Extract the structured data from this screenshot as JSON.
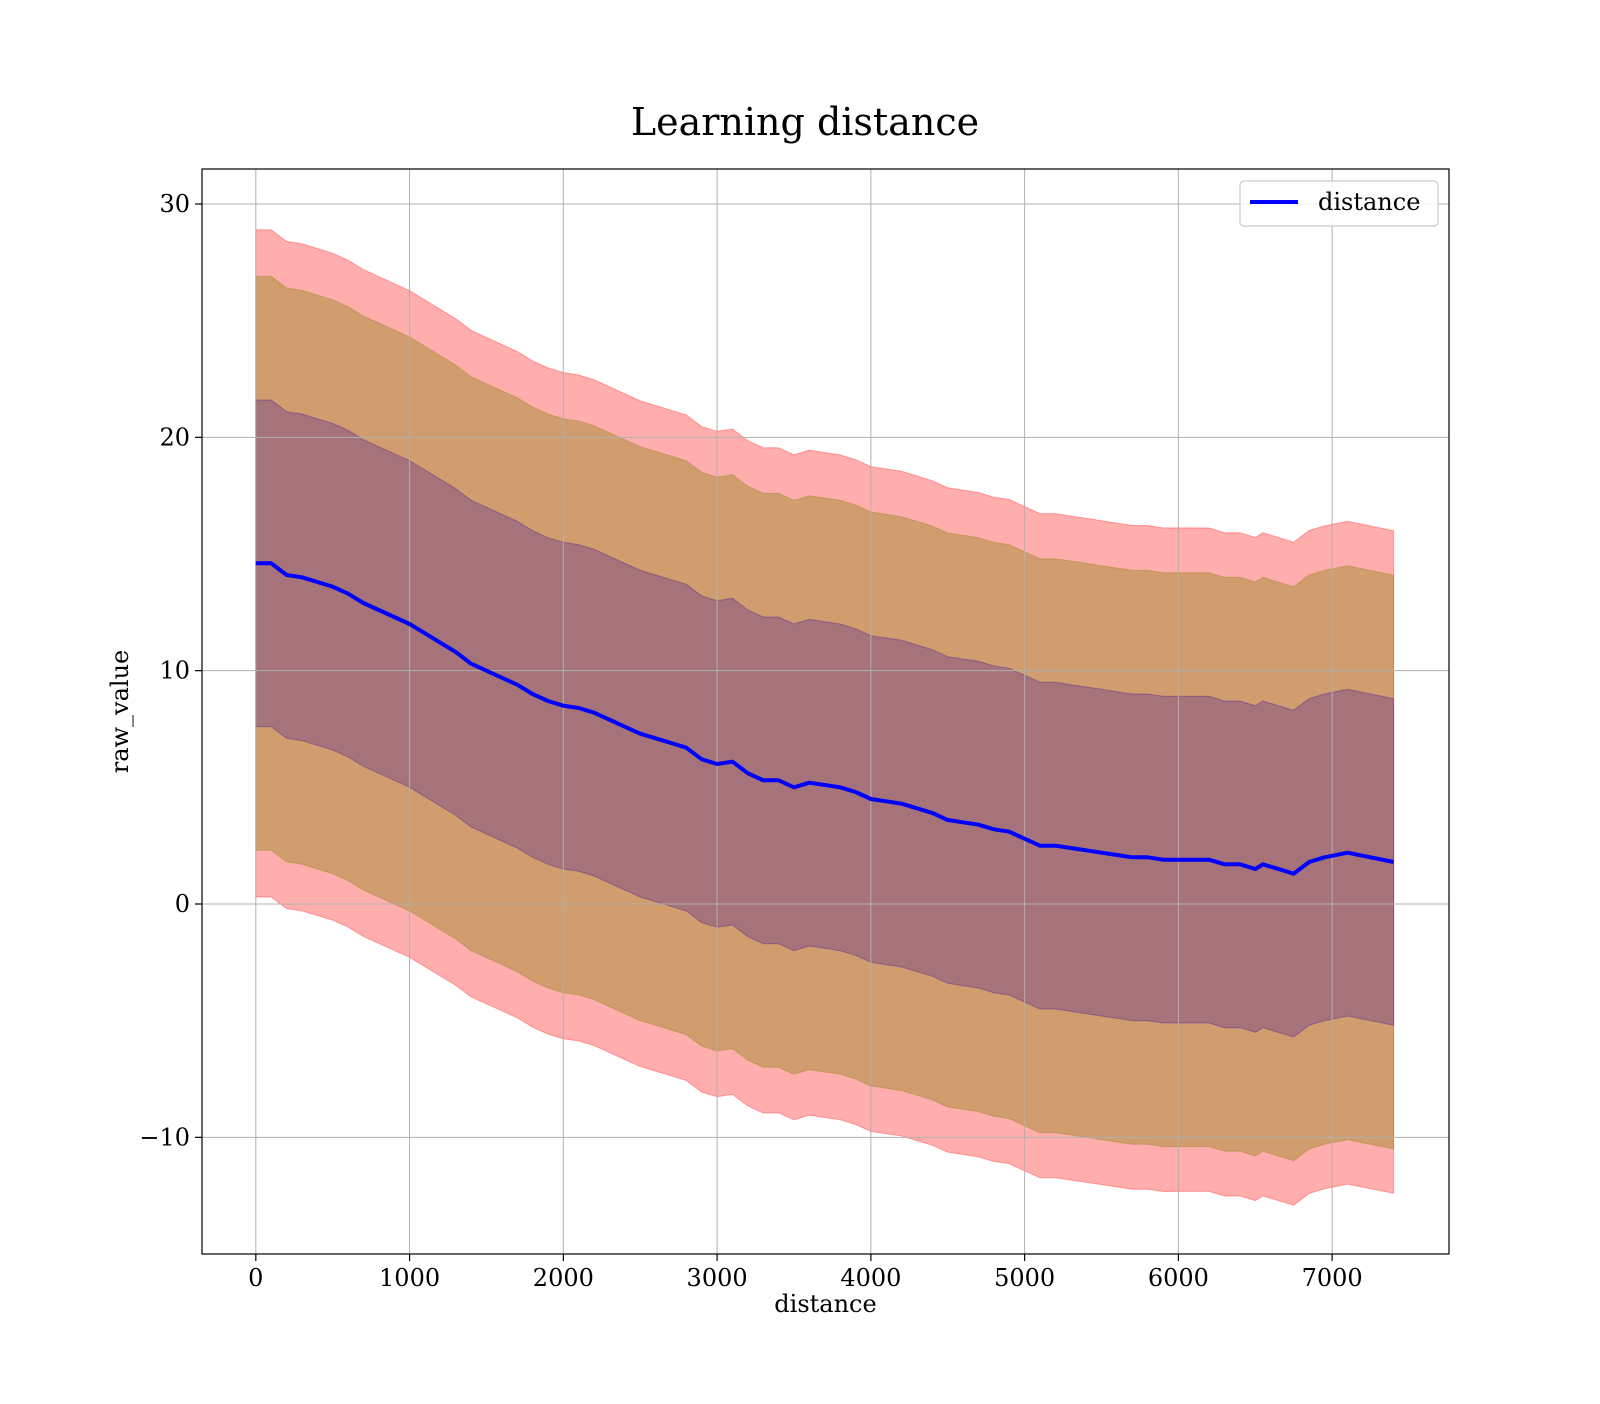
{
  "chart_data": {
    "type": "area",
    "title": "Learning distance",
    "xlabel": "distance",
    "ylabel": "raw_value",
    "xlim": [
      -350,
      7760
    ],
    "ylim": [
      -15,
      31.5
    ],
    "xticks": [
      0,
      1000,
      2000,
      3000,
      4000,
      5000,
      6000,
      7000
    ],
    "yticks": [
      -10,
      0,
      10,
      20,
      30
    ],
    "ytick_labels": [
      "−10",
      "0",
      "10",
      "20",
      "30"
    ],
    "grid": true,
    "legend": {
      "position": "top-right",
      "entries": [
        {
          "label": "distance",
          "color": "#0000ff"
        }
      ]
    },
    "series": [
      {
        "name": "distance",
        "color": "#0000ff",
        "x": [
          0,
          100,
          200,
          300,
          400,
          500,
          600,
          700,
          800,
          900,
          1000,
          1100,
          1200,
          1300,
          1400,
          1500,
          1600,
          1700,
          1800,
          1900,
          2000,
          2100,
          2200,
          2300,
          2400,
          2500,
          2600,
          2700,
          2800,
          2900,
          3000,
          3100,
          3200,
          3300,
          3400,
          3500,
          3600,
          3700,
          3800,
          3900,
          4000,
          4100,
          4200,
          4300,
          4400,
          4500,
          4600,
          4700,
          4800,
          4900,
          5000,
          5100,
          5200,
          5300,
          5400,
          5500,
          5600,
          5700,
          5800,
          5900,
          6000,
          6100,
          6200,
          6300,
          6400,
          6500,
          6550,
          6750,
          6850,
          6950,
          7100,
          7400
        ],
        "values": [
          14.6,
          14.6,
          14.1,
          14.0,
          13.8,
          13.6,
          13.3,
          12.9,
          12.6,
          12.3,
          12.0,
          11.6,
          11.2,
          10.8,
          10.3,
          10.0,
          9.7,
          9.4,
          9.0,
          8.7,
          8.5,
          8.4,
          8.2,
          7.9,
          7.6,
          7.3,
          7.1,
          6.9,
          6.7,
          6.2,
          6.0,
          6.1,
          5.6,
          5.3,
          5.3,
          5.0,
          5.2,
          5.1,
          5.0,
          4.8,
          4.5,
          4.4,
          4.3,
          4.1,
          3.9,
          3.6,
          3.5,
          3.4,
          3.2,
          3.1,
          2.8,
          2.5,
          2.5,
          2.4,
          2.3,
          2.2,
          2.1,
          2.0,
          2.0,
          1.9,
          1.9,
          1.9,
          1.9,
          1.7,
          1.7,
          1.5,
          1.7,
          1.3,
          1.8,
          2.0,
          2.2,
          1.8
        ]
      }
    ],
    "bands": [
      {
        "name": "outer",
        "fill": "#ff0000",
        "opacity": 0.32,
        "half_width": [
          14.3,
          14.2
        ]
      },
      {
        "name": "middle",
        "fill": "#808000",
        "opacity": 0.36,
        "half_width": [
          12.3,
          12.3
        ]
      },
      {
        "name": "inner",
        "fill": "#2b00a0",
        "opacity": 0.26,
        "half_width": [
          7.0,
          7.0
        ]
      }
    ]
  }
}
